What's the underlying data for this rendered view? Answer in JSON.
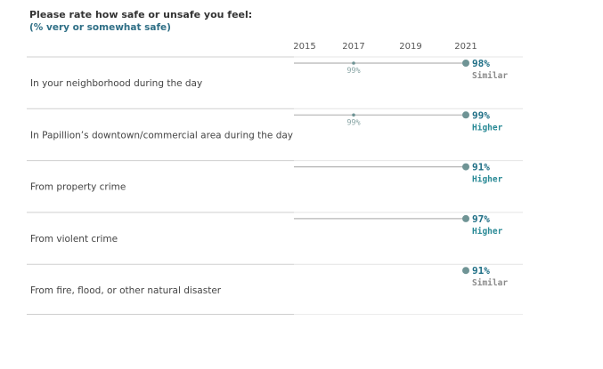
{
  "header": {
    "title": "Please rate how safe or unsafe you feel:",
    "subtitle": "(% very or somewhat safe)"
  },
  "colors": {
    "accent": "#1f6f86",
    "point": "#6f9495",
    "line": "#b5b5b5",
    "divider": "#d3d3d3",
    "higher": "#2a8a96",
    "similar": "#8a8a8a"
  },
  "chart_data": {
    "type": "dot-line",
    "years": [
      "2015",
      "2017",
      "2019",
      "2021"
    ],
    "rows": [
      {
        "label": "In your neighborhood during the day",
        "points": [
          {
            "year": "2017",
            "value": 99,
            "text": "99%"
          },
          {
            "year": "2021",
            "value": 98,
            "text": "98%"
          }
        ],
        "line": true,
        "comparison": "Similar"
      },
      {
        "label": "In Papillion’s downtown/commercial area during the day",
        "points": [
          {
            "year": "2017",
            "value": 99,
            "text": "99%"
          },
          {
            "year": "2021",
            "value": 99,
            "text": "99%"
          }
        ],
        "line": true,
        "comparison": "Higher"
      },
      {
        "label": "From property crime",
        "points": [
          {
            "year": "2021",
            "value": 91,
            "text": "91%"
          }
        ],
        "line": true,
        "comparison": "Higher"
      },
      {
        "label": "From violent crime",
        "points": [
          {
            "year": "2021",
            "value": 97,
            "text": "97%"
          }
        ],
        "line": true,
        "comparison": "Higher"
      },
      {
        "label": "From fire, flood, or other natural disaster",
        "points": [
          {
            "year": "2021",
            "value": 91,
            "text": "91%"
          }
        ],
        "line": false,
        "comparison": "Similar"
      }
    ]
  }
}
